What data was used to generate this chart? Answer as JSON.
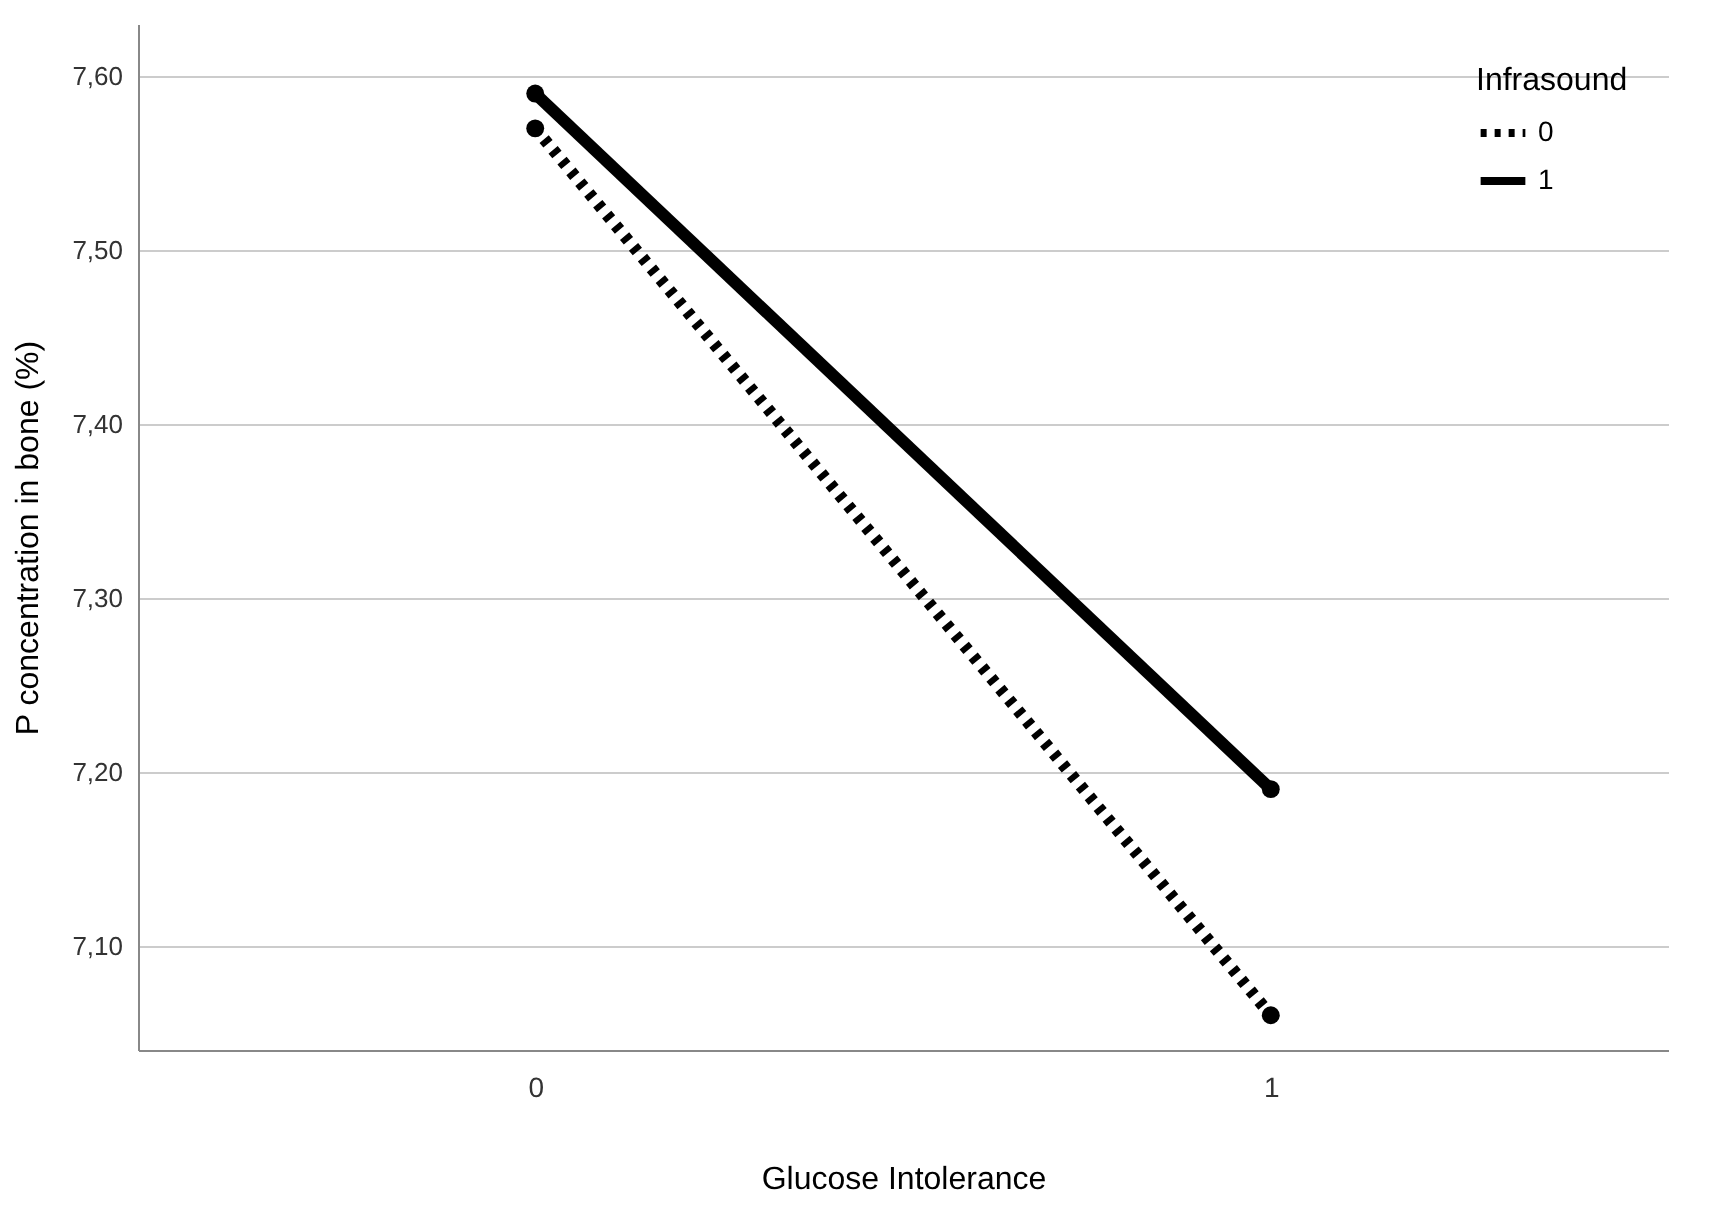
{
  "chart_data": {
    "type": "line",
    "xlabel": "Glucose Intolerance",
    "ylabel": "P concentration in bone (%)",
    "legend_title": "Infrasound",
    "x": [
      0,
      1
    ],
    "series": [
      {
        "name": "0",
        "color": "#000000",
        "values": [
          7.57,
          7.06
        ],
        "line_style": "dotted"
      },
      {
        "name": "1",
        "color": "#000000",
        "values": [
          7.59,
          7.19
        ],
        "line_style": "solid"
      }
    ],
    "xlim": [
      -0.54,
      1.54
    ],
    "xticks": [
      0,
      1
    ],
    "ylim": [
      7.04,
      7.63
    ],
    "yticks": [
      {
        "value": 7.1,
        "label": "7,10"
      },
      {
        "value": 7.2,
        "label": "7,20"
      },
      {
        "value": 7.3,
        "label": "7,30"
      },
      {
        "value": 7.4,
        "label": "7,40"
      },
      {
        "value": 7.5,
        "label": "7,50"
      },
      {
        "value": 7.6,
        "label": "7,60"
      }
    ],
    "grid": "y",
    "legend": "top right",
    "marker": "circle"
  }
}
